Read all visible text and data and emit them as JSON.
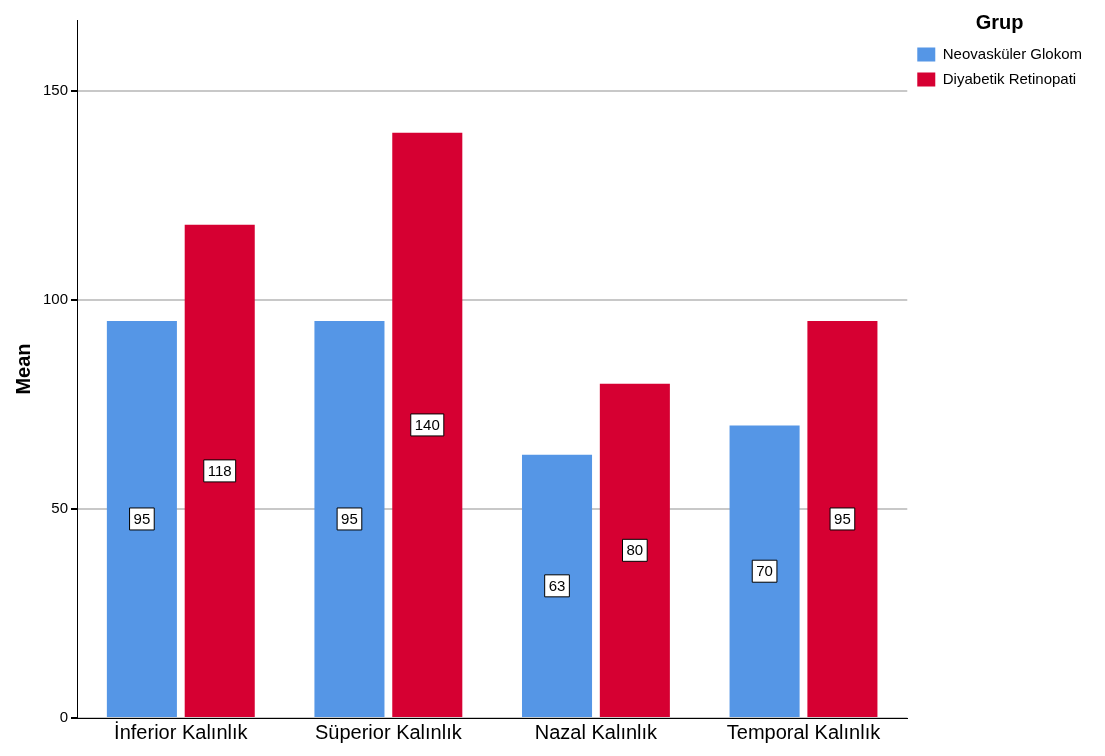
{
  "chart_data": {
    "type": "bar",
    "ylabel": "Mean",
    "legend_title": "Grup",
    "categories": [
      "İnferior Kalınlık",
      "Süperior Kalınlık",
      "Nazal Kalınlık",
      "Temporal Kalınlık"
    ],
    "series": [
      {
        "name": "Neovasküler Glokom",
        "color": "#5596e6",
        "values": [
          95,
          95,
          63,
          70
        ]
      },
      {
        "name": "Diyabetik Retinopati",
        "color": "#d60032",
        "values": [
          118,
          140,
          80,
          95
        ]
      }
    ],
    "ylim": [
      0,
      167
    ],
    "yticks": [
      0,
      50,
      100,
      150
    ],
    "grid": "y",
    "legend": "top right",
    "data_labels": true
  }
}
